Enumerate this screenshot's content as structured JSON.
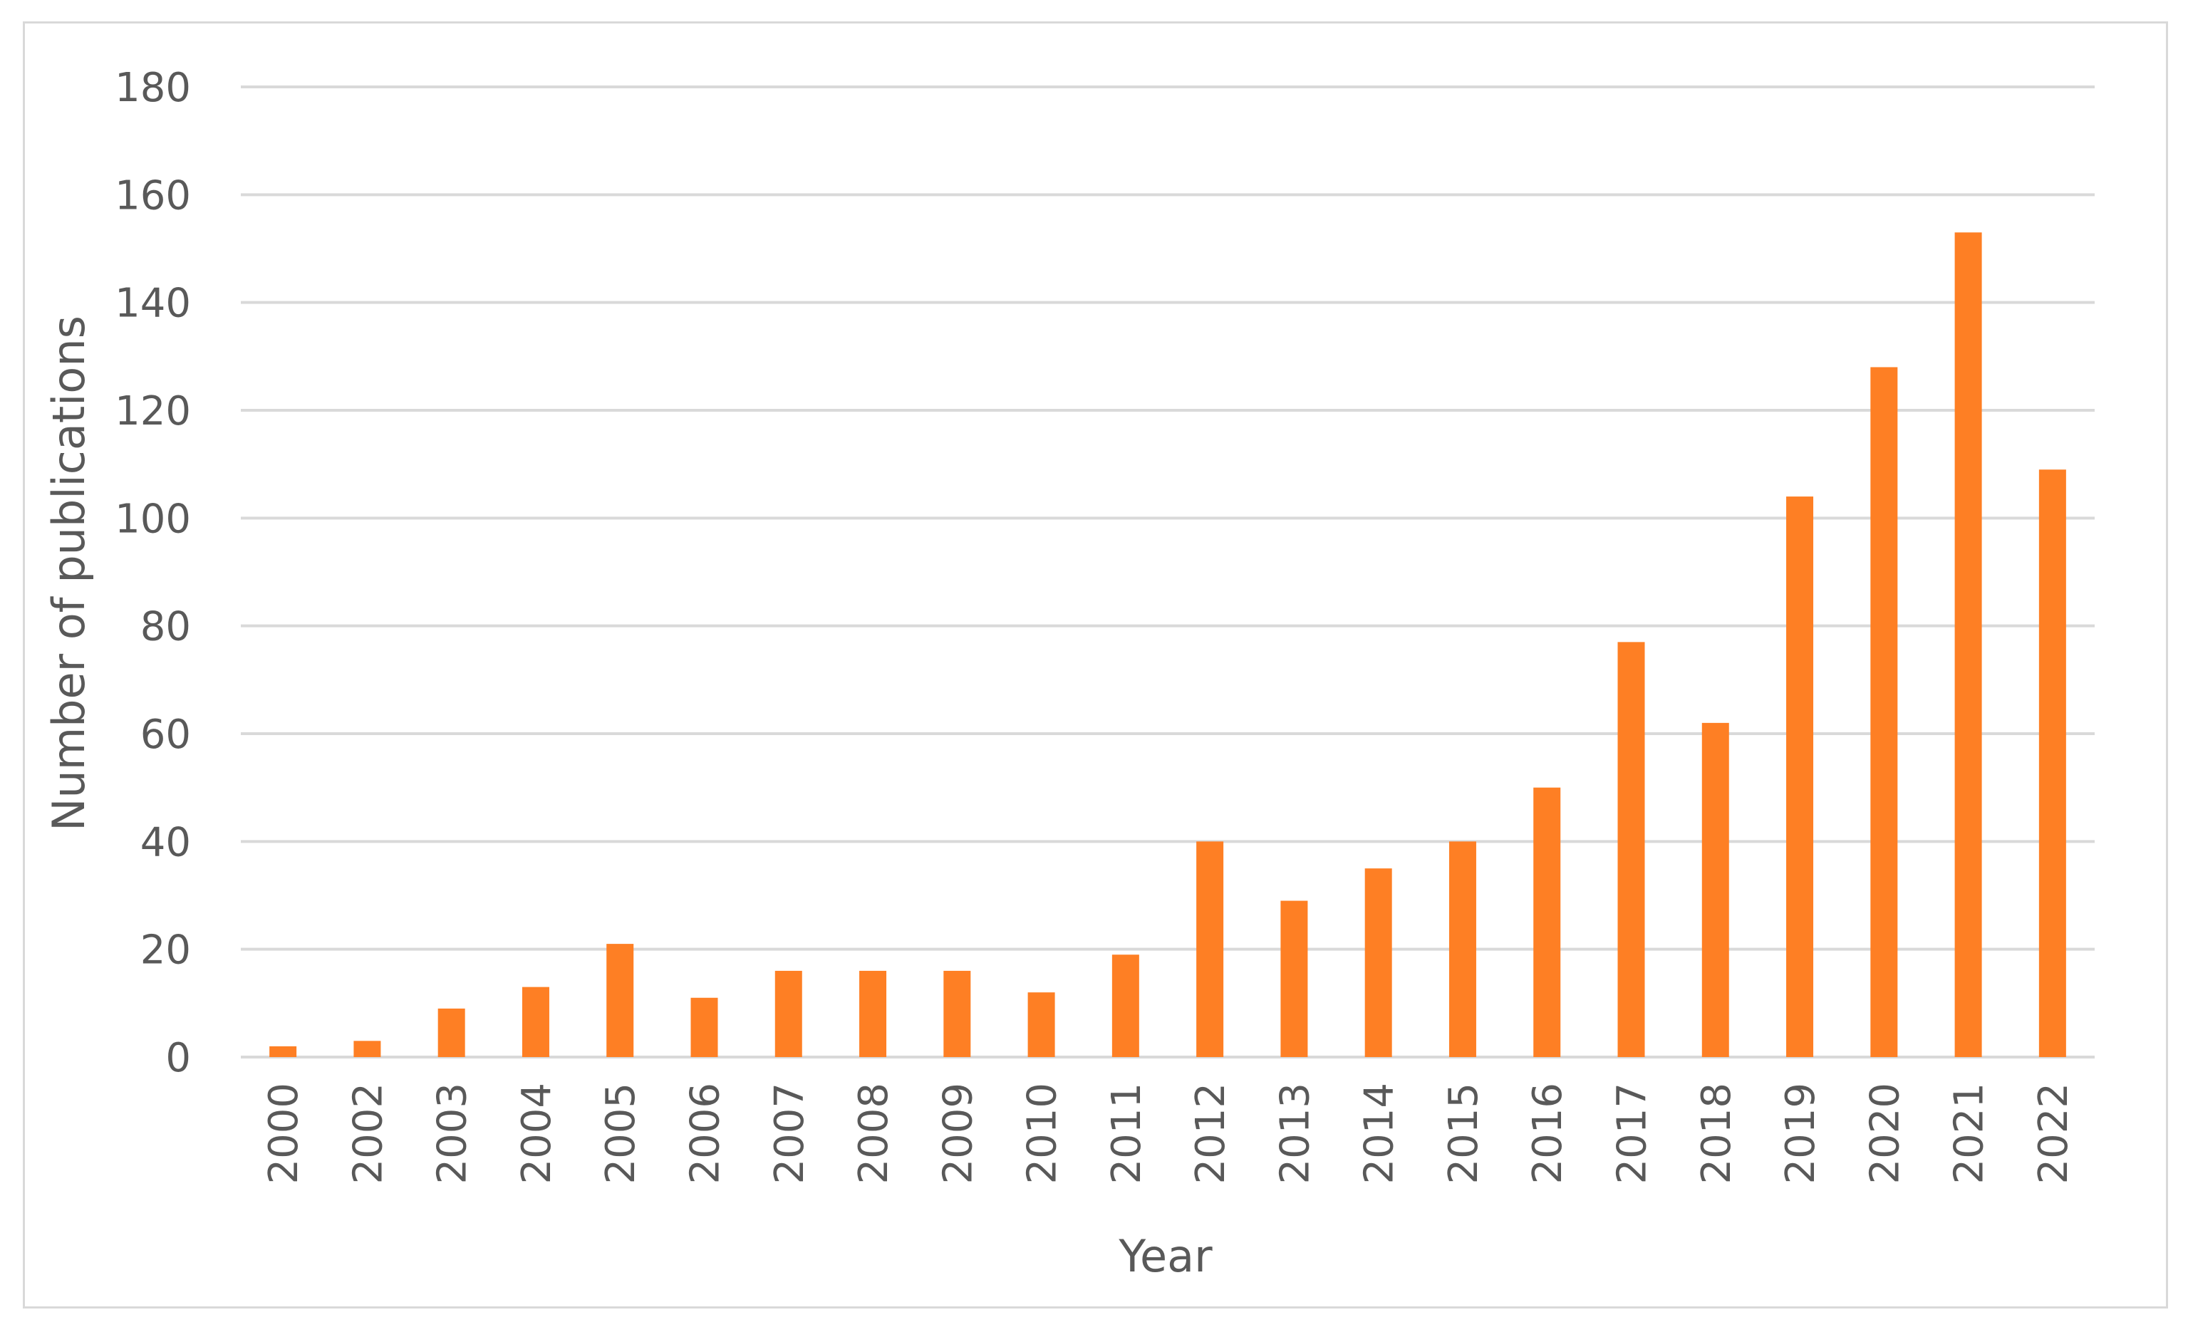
{
  "chart_data": {
    "type": "bar",
    "title": "",
    "xlabel": "Year",
    "ylabel": "Number of publications",
    "categories": [
      "2000",
      "2002",
      "2003",
      "2004",
      "2005",
      "2006",
      "2007",
      "2008",
      "2009",
      "2010",
      "2011",
      "2012",
      "2013",
      "2014",
      "2015",
      "2016",
      "2017",
      "2018",
      "2019",
      "2020",
      "2021",
      "2022"
    ],
    "values": [
      2,
      3,
      9,
      13,
      21,
      11,
      16,
      16,
      16,
      12,
      19,
      40,
      29,
      35,
      40,
      50,
      77,
      62,
      104,
      128,
      153,
      109
    ],
    "ylim": [
      0,
      180
    ],
    "yticks": [
      "0",
      "20",
      "40",
      "60",
      "80",
      "100",
      "120",
      "140",
      "160",
      "180"
    ],
    "grid": true,
    "legend": "none",
    "bar_color": "#fe7f24",
    "grid_color": "#d9d9d9",
    "text_color": "#595959"
  }
}
